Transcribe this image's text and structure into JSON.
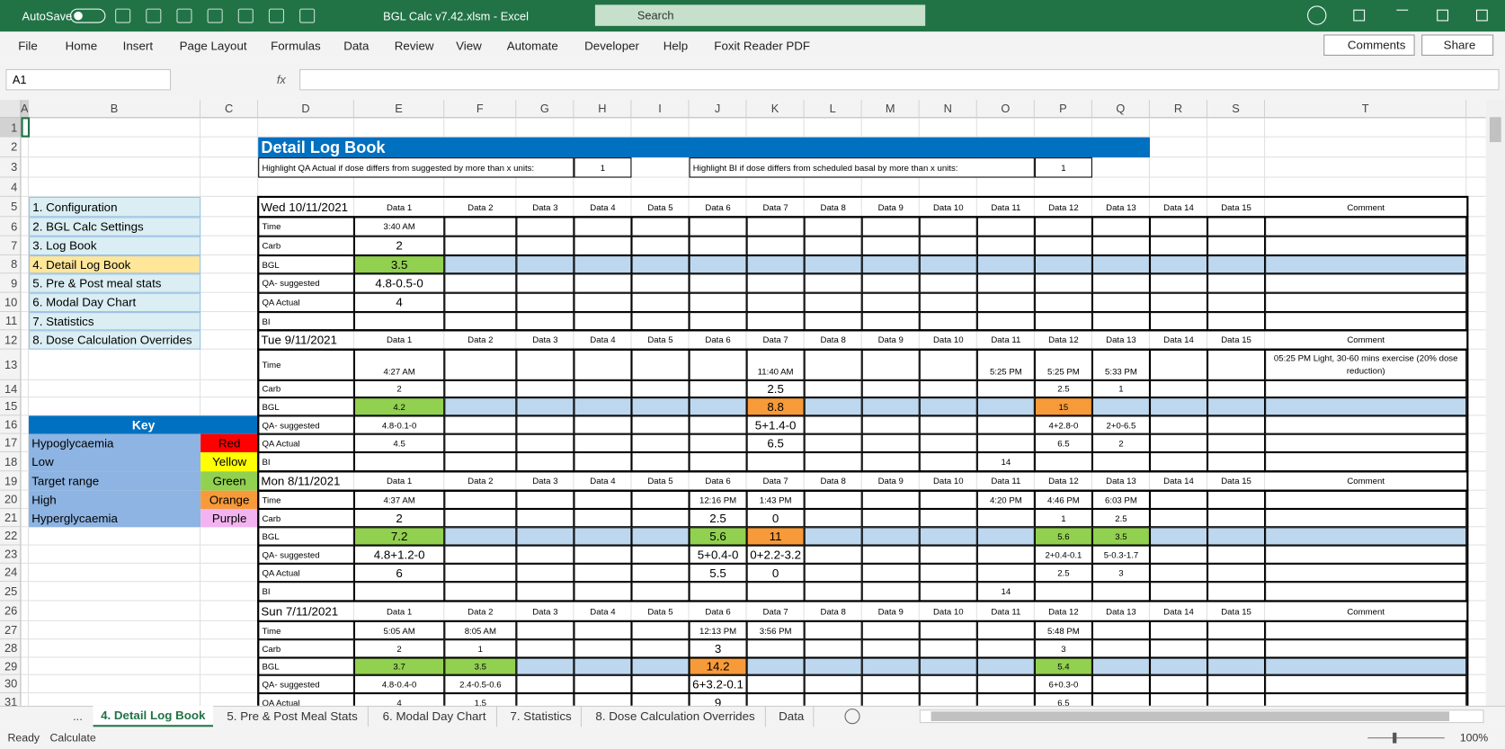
{
  "window": {
    "autosave": "AutoSave",
    "filename": "BGL Calc v7.42.xlsm  -  Excel",
    "search": "Search"
  },
  "ribbon": {
    "tabs": [
      "File",
      "Home",
      "Insert",
      "Page Layout",
      "Formulas",
      "Data",
      "Review",
      "View",
      "Automate",
      "Developer",
      "Help",
      "Foxit Reader PDF"
    ],
    "comments": "Comments",
    "share": "Share"
  },
  "formula_bar": {
    "name_box": "A1",
    "fx": "fx"
  },
  "sheet": {
    "columns": [
      "A",
      "B",
      "C",
      "D",
      "E",
      "F",
      "G",
      "H",
      "I",
      "J",
      "K",
      "L",
      "M",
      "N",
      "O",
      "P",
      "Q",
      "R",
      "S",
      "T"
    ],
    "rows": [
      1,
      2,
      3,
      4,
      5,
      6,
      7,
      8,
      9,
      10,
      11,
      12,
      13,
      14,
      15,
      16,
      17,
      18,
      19,
      20,
      21,
      22,
      23,
      24,
      25,
      26,
      27,
      28,
      29,
      30,
      31
    ],
    "title": "Detail Log Book",
    "settings": [
      {
        "label": "Highlight QA Actual if dose differs from suggested by more than x units:",
        "value": "1"
      },
      {
        "label": "Highlight BI if dose differs from scheduled basal by more than x units:",
        "value": "1"
      }
    ],
    "nav": [
      {
        "label": "1. Configuration",
        "fill": "#daeef3"
      },
      {
        "label": "2. BGL Calc Settings",
        "fill": "#daeef3"
      },
      {
        "label": "3. Log Book",
        "fill": "#daeef3"
      },
      {
        "label": "4. Detail Log Book",
        "fill": "#ffe699"
      },
      {
        "label": "5. Pre & Post meal stats",
        "fill": "#daeef3"
      },
      {
        "label": "6. Modal Day Chart",
        "fill": "#daeef3"
      },
      {
        "label": "7. Statistics",
        "fill": "#daeef3"
      },
      {
        "label": "8. Dose Calculation Overrides",
        "fill": "#daeef3"
      }
    ],
    "key": {
      "title": "Key",
      "items": [
        {
          "label": "Hypoglycaemia",
          "name": "Red",
          "fill": "#ff0000"
        },
        {
          "label": "Low",
          "name": "Yellow",
          "fill": "#ffff00"
        },
        {
          "label": "Target range",
          "name": "Green",
          "fill": "#92d050"
        },
        {
          "label": "High",
          "name": "Orange",
          "fill": "#f79a3a"
        },
        {
          "label": "Hyperglycaemia",
          "name": "Purple",
          "fill": "#f2b3f0"
        }
      ]
    },
    "log": {
      "headers": [
        "Data 1",
        "Data 2",
        "Data 3",
        "Data 4",
        "Data 5",
        "Data 6",
        "Data 7",
        "Data 8",
        "Data 9",
        "Data 10",
        "Data 11",
        "Data 12",
        "Data 13",
        "Data 14",
        "Data 15",
        "Comment"
      ],
      "row_labels": [
        "Time",
        "Carb",
        "BGL",
        "QA- suggested",
        "QA Actual",
        "BI"
      ],
      "days": [
        {
          "date": "Wed 10/11/2021",
          "comment": null,
          "cells": [
            [
              "3:40 AM",
              null,
              null,
              null,
              null,
              null,
              null,
              null,
              null,
              null,
              null,
              null,
              null,
              null,
              null
            ],
            [
              "2",
              null,
              null,
              null,
              null,
              null,
              null,
              null,
              null,
              null,
              null,
              null,
              null,
              null,
              null
            ],
            [
              "3.5",
              null,
              null,
              null,
              null,
              null,
              null,
              null,
              null,
              null,
              null,
              null,
              null,
              null,
              null
            ],
            [
              "4.8-0.5-0",
              null,
              null,
              null,
              null,
              null,
              null,
              null,
              null,
              null,
              null,
              null,
              null,
              null,
              null
            ],
            [
              "4",
              null,
              null,
              null,
              null,
              null,
              null,
              null,
              null,
              null,
              null,
              null,
              null,
              null,
              null
            ],
            [
              null,
              null,
              null,
              null,
              null,
              null,
              null,
              null,
              null,
              null,
              null,
              null,
              null,
              null,
              null
            ]
          ],
          "bgl_fills": [
            "#92d050",
            null,
            null,
            null,
            null,
            null,
            null,
            null,
            null,
            null,
            null,
            null,
            null,
            null,
            null
          ]
        },
        {
          "date": "Tue 9/11/2021",
          "comment": "05:25 PM Light, 30-60 mins exercise (20% dose reduction)",
          "cells": [
            [
              "4:27 AM",
              null,
              null,
              null,
              null,
              null,
              "11:40 AM",
              null,
              null,
              null,
              "5:25 PM",
              "5:25 PM",
              "5:33 PM",
              null,
              null
            ],
            [
              "2",
              null,
              null,
              null,
              null,
              null,
              "2.5",
              null,
              null,
              null,
              null,
              "2.5",
              "1",
              null,
              null
            ],
            [
              "4.2",
              null,
              null,
              null,
              null,
              null,
              "8.8",
              null,
              null,
              null,
              null,
              "15",
              null,
              null,
              null
            ],
            [
              "4.8-0.1-0",
              null,
              null,
              null,
              null,
              null,
              "5+1.4-0",
              null,
              null,
              null,
              null,
              "4+2.8-0",
              "2+0-6.5",
              null,
              null
            ],
            [
              "4.5",
              null,
              null,
              null,
              null,
              null,
              "6.5",
              null,
              null,
              null,
              null,
              "6.5",
              "2",
              null,
              null
            ],
            [
              null,
              null,
              null,
              null,
              null,
              null,
              null,
              null,
              null,
              null,
              "14",
              null,
              null,
              null,
              null
            ]
          ],
          "bgl_fills": [
            "#92d050",
            null,
            null,
            null,
            null,
            null,
            "#f79a3a",
            null,
            null,
            null,
            null,
            "#f79a3a",
            null,
            null,
            null
          ]
        },
        {
          "date": "Mon 8/11/2021",
          "comment": null,
          "cells": [
            [
              "4:37 AM",
              null,
              null,
              null,
              null,
              "12:16 PM",
              "1:43 PM",
              null,
              null,
              null,
              "4:20 PM",
              "4:46 PM",
              "6:03 PM",
              null,
              null
            ],
            [
              "2",
              null,
              null,
              null,
              null,
              "2.5",
              "0",
              null,
              null,
              null,
              null,
              "1",
              "2.5",
              null,
              null
            ],
            [
              "7.2",
              null,
              null,
              null,
              null,
              "5.6",
              "11",
              null,
              null,
              null,
              null,
              "5.6",
              "3.5",
              null,
              null
            ],
            [
              "4.8+1.2-0",
              null,
              null,
              null,
              null,
              "5+0.4-0",
              "0+2.2-3.2",
              null,
              null,
              null,
              null,
              "2+0.4-0.1",
              "5-0.3-1.7",
              null,
              null
            ],
            [
              "6",
              null,
              null,
              null,
              null,
              "5.5",
              "0",
              null,
              null,
              null,
              null,
              "2.5",
              "3",
              null,
              null
            ],
            [
              null,
              null,
              null,
              null,
              null,
              null,
              null,
              null,
              null,
              null,
              "14",
              null,
              null,
              null,
              null
            ]
          ],
          "bgl_fills": [
            "#92d050",
            null,
            null,
            null,
            null,
            "#92d050",
            "#f79a3a",
            null,
            null,
            null,
            null,
            "#92d050",
            "#92d050",
            null,
            null
          ]
        },
        {
          "date": "Sun 7/11/2021",
          "comment": null,
          "cells": [
            [
              "5:05 AM",
              "8:05 AM",
              null,
              null,
              null,
              "12:13 PM",
              "3:56 PM",
              null,
              null,
              null,
              null,
              "5:48 PM",
              null,
              null,
              null
            ],
            [
              "2",
              "1",
              null,
              null,
              null,
              "3",
              null,
              null,
              null,
              null,
              null,
              "3",
              null,
              null,
              null
            ],
            [
              "3.7",
              "3.5",
              null,
              null,
              null,
              "14.2",
              null,
              null,
              null,
              null,
              null,
              "5.4",
              null,
              null,
              null
            ],
            [
              "4.8-0.4-0",
              "2.4-0.5-0.6",
              null,
              null,
              null,
              "6+3.2-0.1",
              null,
              null,
              null,
              null,
              null,
              "6+0.3-0",
              null,
              null,
              null
            ],
            [
              "4",
              "1.5",
              null,
              null,
              null,
              "9",
              null,
              null,
              null,
              null,
              null,
              "6.5",
              null,
              null,
              null
            ]
          ],
          "bgl_fills": [
            "#92d050",
            "#92d050",
            null,
            null,
            null,
            "#f79a3a",
            null,
            null,
            null,
            null,
            null,
            "#92d050",
            null,
            null,
            null
          ]
        }
      ]
    }
  },
  "tabs": {
    "overflow": "...",
    "sheets": [
      "4. Detail Log Book",
      "5. Pre & Post Meal Stats",
      "6. Modal Day Chart",
      "7. Statistics",
      "8. Dose Calculation Overrides",
      "Data"
    ]
  },
  "status": {
    "ready": "Ready",
    "calculate": "Calculate",
    "zoom": "100%"
  }
}
